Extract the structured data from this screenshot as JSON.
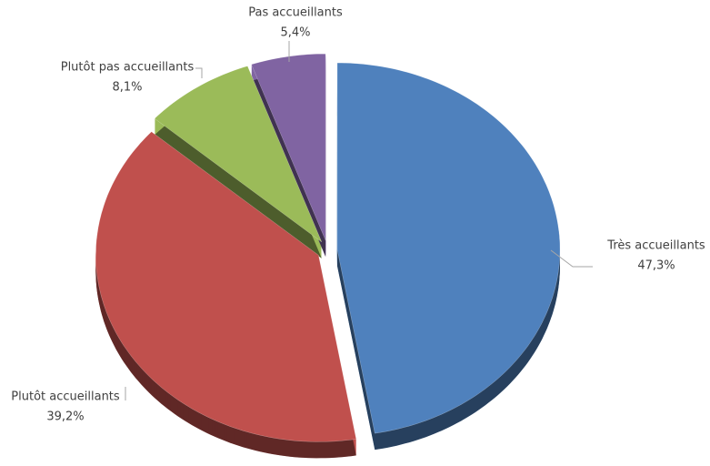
{
  "chart_data": {
    "type": "pie",
    "categories": [
      "Très accueillants",
      "Plutôt accueillants",
      "Plutôt pas accueillants",
      "Pas accueillants"
    ],
    "values": [
      47.3,
      39.2,
      8.1,
      5.4
    ],
    "value_labels": [
      "47,3%",
      "39,2%",
      "8,1%",
      "5,4%"
    ],
    "colors": [
      "#4f81bd",
      "#c0504d",
      "#9bbb59",
      "#8064a2"
    ]
  }
}
